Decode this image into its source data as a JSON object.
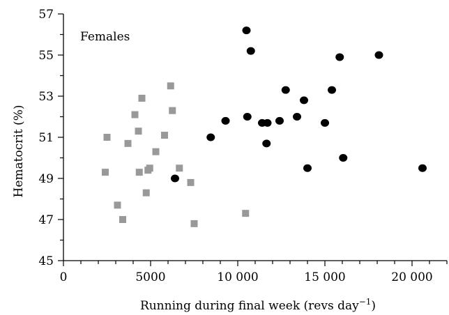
{
  "chart_data": {
    "type": "scatter",
    "title": "",
    "annotation": "Females",
    "xlabel": "Running during final week (revs day",
    "xlabel_sup": "−1",
    "xlabel_end": ")",
    "ylabel": "Hematocrit (%)",
    "xlim": [
      0,
      22000
    ],
    "ylim": [
      45,
      57
    ],
    "x_ticks": [
      0,
      5000,
      10000,
      15000,
      20000
    ],
    "x_tick_labels": [
      "0",
      "5000",
      "10 000",
      "15 000",
      "20 000"
    ],
    "y_ticks": [
      45,
      47,
      49,
      51,
      53,
      55,
      57
    ],
    "y_tick_labels": [
      "45",
      "47",
      "49",
      "51",
      "53",
      "55",
      "57"
    ],
    "grid": false,
    "series": [
      {
        "marker": "square",
        "color": "#999999",
        "points": [
          [
            2400,
            49.3
          ],
          [
            2500,
            51.0
          ],
          [
            3100,
            47.7
          ],
          [
            3400,
            47.0
          ],
          [
            3700,
            50.7
          ],
          [
            4100,
            52.1
          ],
          [
            4300,
            51.3
          ],
          [
            4350,
            49.3
          ],
          [
            4500,
            52.9
          ],
          [
            4750,
            48.3
          ],
          [
            4850,
            49.4
          ],
          [
            4950,
            49.5
          ],
          [
            5300,
            50.3
          ],
          [
            5800,
            51.1
          ],
          [
            6150,
            53.5
          ],
          [
            6250,
            52.3
          ],
          [
            6650,
            49.5
          ],
          [
            7300,
            48.8
          ],
          [
            7500,
            46.8
          ],
          [
            10450,
            47.3
          ]
        ]
      },
      {
        "marker": "circle",
        "color": "#000000",
        "points": [
          [
            6400,
            49.0
          ],
          [
            8450,
            51.0
          ],
          [
            9300,
            51.8
          ],
          [
            10500,
            56.2
          ],
          [
            10550,
            52.0
          ],
          [
            10750,
            55.2
          ],
          [
            11400,
            51.7
          ],
          [
            11650,
            50.7
          ],
          [
            11700,
            51.7
          ],
          [
            12400,
            51.8
          ],
          [
            12750,
            53.3
          ],
          [
            13400,
            52.0
          ],
          [
            13800,
            52.8
          ],
          [
            14000,
            49.5
          ],
          [
            15000,
            51.7
          ],
          [
            15400,
            53.3
          ],
          [
            15850,
            54.9
          ],
          [
            16050,
            50.0
          ],
          [
            18100,
            55.0
          ],
          [
            20600,
            49.5
          ]
        ]
      }
    ]
  }
}
